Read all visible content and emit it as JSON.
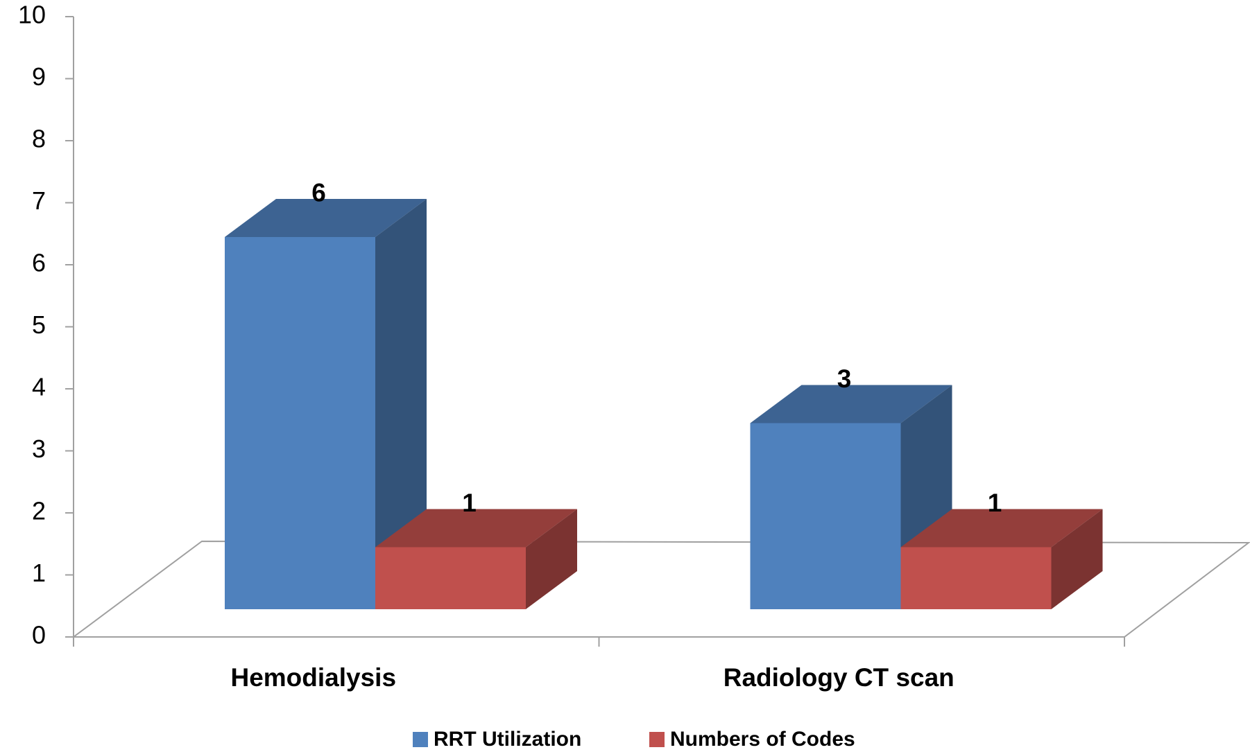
{
  "chart_data": {
    "type": "bar3d",
    "categories": [
      "Hemodialysis",
      "Radiology CT scan"
    ],
    "series": [
      {
        "name": "RRT Utilization",
        "color": "#4f81bd",
        "values": [
          6,
          3
        ]
      },
      {
        "name": "Numbers of Codes",
        "color": "#c0504d",
        "values": [
          1,
          1
        ]
      }
    ],
    "ylim": [
      0,
      10
    ],
    "yticks": [
      0,
      1,
      2,
      3,
      4,
      5,
      6,
      7,
      8,
      9,
      10
    ],
    "legend": "bottom"
  }
}
